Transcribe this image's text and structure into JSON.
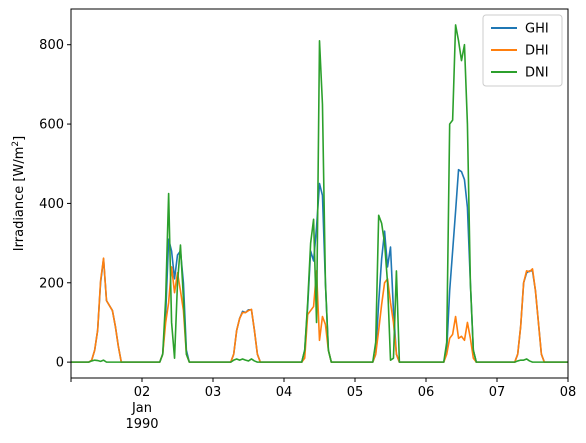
{
  "chart_data": {
    "type": "line",
    "title": "",
    "xlabel": "",
    "ylabel": "Irradiance [W/m",
    "ylabel_sup": "2",
    "ylabel_suffix": "]",
    "xlim": [
      0,
      168
    ],
    "ylim": [
      -40,
      890
    ],
    "x_ticks": [
      {
        "x": 24,
        "label": "02",
        "sub1": "Jan",
        "sub2": "1990"
      },
      {
        "x": 48,
        "label": "03"
      },
      {
        "x": 72,
        "label": "04"
      },
      {
        "x": 96,
        "label": "05"
      },
      {
        "x": 120,
        "label": "06"
      },
      {
        "x": 144,
        "label": "07"
      },
      {
        "x": 168,
        "label": "08"
      }
    ],
    "y_ticks": [
      0,
      200,
      400,
      600,
      800
    ],
    "legend_position": "top-right",
    "grid": false,
    "series": [
      {
        "name": "GHI",
        "color": "#1f77b4",
        "points": [
          [
            0,
            0
          ],
          [
            6,
            0
          ],
          [
            7,
            5
          ],
          [
            8,
            30
          ],
          [
            9,
            80
          ],
          [
            10,
            200
          ],
          [
            11,
            260
          ],
          [
            12,
            155
          ],
          [
            14,
            130
          ],
          [
            15,
            90
          ],
          [
            16,
            40
          ],
          [
            17,
            0
          ],
          [
            30,
            0
          ],
          [
            31,
            20
          ],
          [
            32,
            120
          ],
          [
            33,
            310
          ],
          [
            34,
            280
          ],
          [
            35,
            210
          ],
          [
            36,
            270
          ],
          [
            37,
            280
          ],
          [
            38,
            200
          ],
          [
            39,
            30
          ],
          [
            40,
            0
          ],
          [
            54,
            0
          ],
          [
            55,
            20
          ],
          [
            56,
            80
          ],
          [
            57,
            110
          ],
          [
            58,
            128
          ],
          [
            59,
            125
          ],
          [
            60,
            132
          ],
          [
            61,
            132
          ],
          [
            62,
            80
          ],
          [
            63,
            20
          ],
          [
            64,
            0
          ],
          [
            78,
            0
          ],
          [
            79,
            30
          ],
          [
            80,
            140
          ],
          [
            81,
            280
          ],
          [
            82,
            255
          ],
          [
            83,
            340
          ],
          [
            84,
            450
          ],
          [
            85,
            420
          ],
          [
            86,
            200
          ],
          [
            87,
            30
          ],
          [
            88,
            0
          ],
          [
            102,
            0
          ],
          [
            103,
            20
          ],
          [
            104,
            150
          ],
          [
            105,
            260
          ],
          [
            106,
            330
          ],
          [
            107,
            240
          ],
          [
            108,
            290
          ],
          [
            109,
            130
          ],
          [
            110,
            20
          ],
          [
            111,
            0
          ],
          [
            126,
            0
          ],
          [
            127,
            30
          ],
          [
            128,
            180
          ],
          [
            129,
            280
          ],
          [
            130,
            380
          ],
          [
            131,
            485
          ],
          [
            132,
            480
          ],
          [
            133,
            460
          ],
          [
            134,
            390
          ],
          [
            135,
            200
          ],
          [
            136,
            30
          ],
          [
            137,
            0
          ],
          [
            150,
            0
          ],
          [
            151,
            20
          ],
          [
            152,
            90
          ],
          [
            153,
            200
          ],
          [
            154,
            225
          ],
          [
            155,
            230
          ],
          [
            156,
            230
          ],
          [
            157,
            180
          ],
          [
            158,
            100
          ],
          [
            159,
            20
          ],
          [
            160,
            0
          ],
          [
            168,
            0
          ]
        ]
      },
      {
        "name": "DHI",
        "color": "#ff7f0e",
        "points": [
          [
            0,
            0
          ],
          [
            6,
            0
          ],
          [
            7,
            5
          ],
          [
            8,
            30
          ],
          [
            9,
            80
          ],
          [
            10,
            205
          ],
          [
            11,
            262
          ],
          [
            12,
            155
          ],
          [
            14,
            130
          ],
          [
            15,
            90
          ],
          [
            16,
            40
          ],
          [
            17,
            0
          ],
          [
            30,
            0
          ],
          [
            31,
            20
          ],
          [
            32,
            100
          ],
          [
            33,
            150
          ],
          [
            34,
            240
          ],
          [
            35,
            175
          ],
          [
            36,
            225
          ],
          [
            37,
            180
          ],
          [
            38,
            130
          ],
          [
            39,
            20
          ],
          [
            40,
            0
          ],
          [
            54,
            0
          ],
          [
            55,
            20
          ],
          [
            56,
            80
          ],
          [
            57,
            110
          ],
          [
            58,
            125
          ],
          [
            59,
            125
          ],
          [
            60,
            130
          ],
          [
            61,
            133
          ],
          [
            62,
            80
          ],
          [
            63,
            20
          ],
          [
            64,
            0
          ],
          [
            78,
            0
          ],
          [
            79,
            10
          ],
          [
            80,
            120
          ],
          [
            81,
            130
          ],
          [
            82,
            140
          ],
          [
            83,
            230
          ],
          [
            84,
            55
          ],
          [
            85,
            115
          ],
          [
            86,
            95
          ],
          [
            87,
            30
          ],
          [
            88,
            0
          ],
          [
            102,
            0
          ],
          [
            103,
            20
          ],
          [
            104,
            80
          ],
          [
            105,
            145
          ],
          [
            106,
            200
          ],
          [
            107,
            210
          ],
          [
            108,
            150
          ],
          [
            109,
            100
          ],
          [
            110,
            20
          ],
          [
            111,
            0
          ],
          [
            126,
            0
          ],
          [
            127,
            20
          ],
          [
            128,
            60
          ],
          [
            129,
            70
          ],
          [
            130,
            115
          ],
          [
            131,
            60
          ],
          [
            132,
            65
          ],
          [
            133,
            55
          ],
          [
            134,
            100
          ],
          [
            135,
            60
          ],
          [
            136,
            10
          ],
          [
            137,
            0
          ],
          [
            150,
            0
          ],
          [
            151,
            20
          ],
          [
            152,
            90
          ],
          [
            153,
            200
          ],
          [
            154,
            230
          ],
          [
            155,
            228
          ],
          [
            156,
            235
          ],
          [
            157,
            180
          ],
          [
            158,
            100
          ],
          [
            159,
            20
          ],
          [
            160,
            0
          ],
          [
            168,
            0
          ]
        ]
      },
      {
        "name": "DNI",
        "color": "#2ca02c",
        "points": [
          [
            0,
            0
          ],
          [
            6,
            0
          ],
          [
            7,
            3
          ],
          [
            8,
            5
          ],
          [
            9,
            4
          ],
          [
            10,
            2
          ],
          [
            11,
            5
          ],
          [
            12,
            0
          ],
          [
            17,
            0
          ],
          [
            30,
            0
          ],
          [
            31,
            20
          ],
          [
            32,
            160
          ],
          [
            33,
            425
          ],
          [
            34,
            100
          ],
          [
            35,
            10
          ],
          [
            36,
            200
          ],
          [
            37,
            295
          ],
          [
            38,
            160
          ],
          [
            39,
            20
          ],
          [
            40,
            0
          ],
          [
            54,
            0
          ],
          [
            55,
            5
          ],
          [
            56,
            8
          ],
          [
            57,
            5
          ],
          [
            58,
            8
          ],
          [
            59,
            5
          ],
          [
            60,
            3
          ],
          [
            61,
            8
          ],
          [
            62,
            3
          ],
          [
            63,
            0
          ],
          [
            78,
            0
          ],
          [
            79,
            30
          ],
          [
            80,
            150
          ],
          [
            81,
            300
          ],
          [
            82,
            360
          ],
          [
            83,
            100
          ],
          [
            84,
            810
          ],
          [
            85,
            650
          ],
          [
            86,
            200
          ],
          [
            87,
            30
          ],
          [
            88,
            0
          ],
          [
            102,
            0
          ],
          [
            103,
            50
          ],
          [
            104,
            370
          ],
          [
            105,
            350
          ],
          [
            106,
            300
          ],
          [
            107,
            200
          ],
          [
            108,
            5
          ],
          [
            109,
            10
          ],
          [
            110,
            230
          ],
          [
            111,
            0
          ],
          [
            126,
            0
          ],
          [
            127,
            50
          ],
          [
            128,
            600
          ],
          [
            129,
            610
          ],
          [
            130,
            850
          ],
          [
            131,
            810
          ],
          [
            132,
            760
          ],
          [
            133,
            800
          ],
          [
            134,
            600
          ],
          [
            135,
            200
          ],
          [
            136,
            30
          ],
          [
            137,
            0
          ],
          [
            150,
            0
          ],
          [
            151,
            3
          ],
          [
            152,
            5
          ],
          [
            153,
            5
          ],
          [
            154,
            8
          ],
          [
            155,
            3
          ],
          [
            156,
            0
          ],
          [
            168,
            0
          ]
        ]
      }
    ]
  }
}
